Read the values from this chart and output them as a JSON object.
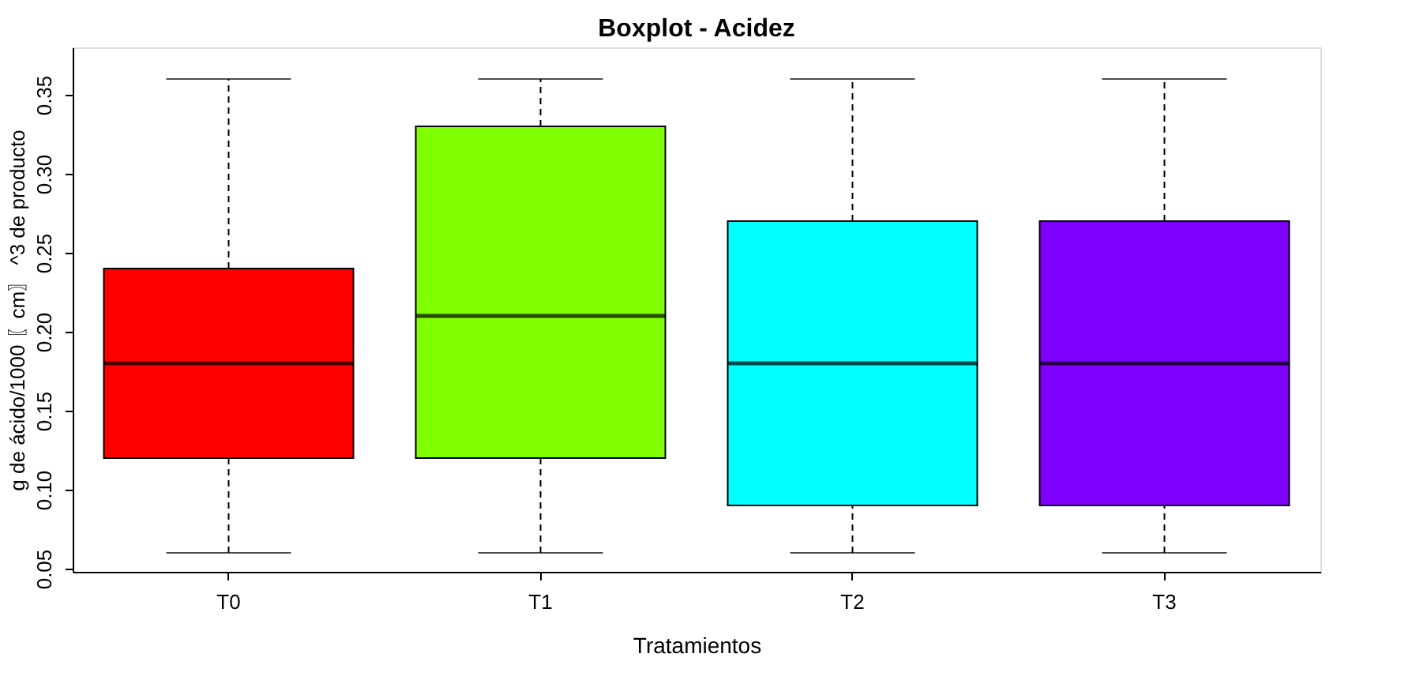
{
  "chart_data": {
    "type": "box",
    "title": "Boxplot - Acidez",
    "xlabel": "Tratamientos",
    "ylabel": "g de ácido/1000 〖cm〗 ^3 de producto",
    "categories": [
      "T0",
      "T1",
      "T2",
      "T3"
    ],
    "boxes": [
      {
        "low": 0.06,
        "q1": 0.12,
        "median": 0.18,
        "q3": 0.24,
        "high": 0.36
      },
      {
        "low": 0.06,
        "q1": 0.12,
        "median": 0.21,
        "q3": 0.33,
        "high": 0.36
      },
      {
        "low": 0.06,
        "q1": 0.09,
        "median": 0.18,
        "q3": 0.27,
        "high": 0.36
      },
      {
        "low": 0.06,
        "q1": 0.09,
        "median": 0.18,
        "q3": 0.27,
        "high": 0.36
      }
    ],
    "colors": [
      "#ff0000",
      "#80ff00",
      "#00ffff",
      "#8000ff"
    ],
    "ylim": [
      0.048,
      0.38
    ],
    "yticks": [
      {
        "value": 0.05,
        "label": "0.05"
      },
      {
        "value": 0.1,
        "label": "0.10"
      },
      {
        "value": 0.15,
        "label": "0.15"
      },
      {
        "value": 0.2,
        "label": "0.20"
      },
      {
        "value": 0.25,
        "label": "0.25"
      },
      {
        "value": 0.3,
        "label": "0.30"
      },
      {
        "value": 0.35,
        "label": "0.35"
      }
    ],
    "grid": false
  }
}
